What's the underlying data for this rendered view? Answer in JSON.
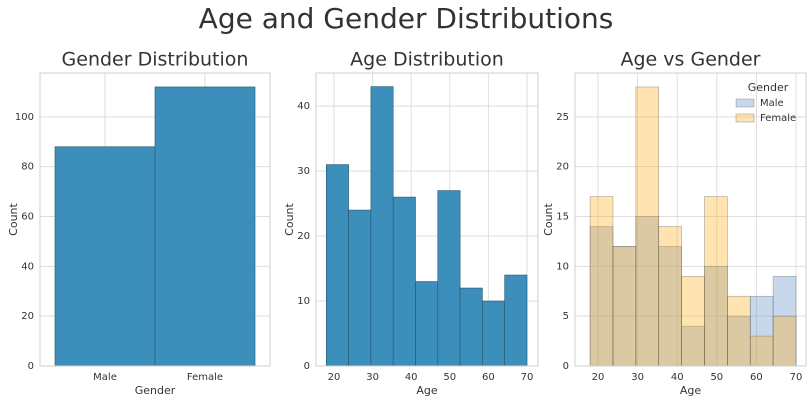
{
  "title": "Age and Gender Distributions",
  "chart_data": [
    {
      "type": "bar",
      "title": "Gender Distribution",
      "xlabel": "Gender",
      "ylabel": "Count",
      "categories": [
        "Male",
        "Female"
      ],
      "values": [
        88,
        112
      ],
      "color": "#3d8fbb",
      "ylim": [
        0,
        117.6
      ],
      "yticks": [
        0,
        20,
        40,
        60,
        80,
        100
      ],
      "grid": true
    },
    {
      "type": "histogram",
      "title": "Age Distribution",
      "xlabel": "Age",
      "ylabel": "Count",
      "bins": [
        18,
        23.78,
        29.56,
        35.33,
        41.11,
        46.89,
        52.67,
        58.44,
        64.22,
        70
      ],
      "values": [
        31,
        24,
        43,
        26,
        13,
        27,
        12,
        10,
        14
      ],
      "color": "#3d8fbb",
      "xlim": [
        15.34,
        72.85
      ],
      "xticks": [
        20,
        30,
        40,
        50,
        60,
        70
      ],
      "ylim": [
        0,
        45.1
      ],
      "yticks": [
        0,
        10,
        20,
        30,
        40
      ],
      "grid": true
    },
    {
      "type": "histogram",
      "title": "Age vs Gender",
      "xlabel": "Age",
      "ylabel": "Count",
      "bins": [
        18,
        23.78,
        29.56,
        35.33,
        41.11,
        46.89,
        52.67,
        58.44,
        64.22,
        70
      ],
      "series": [
        {
          "name": "Male",
          "color": "#5b8fc4",
          "values": [
            14,
            12,
            15,
            12,
            4,
            10,
            5,
            7,
            9
          ]
        },
        {
          "name": "Female",
          "color": "#ffb020",
          "values": [
            17,
            12,
            28,
            14,
            9,
            17,
            7,
            3,
            5
          ]
        }
      ],
      "legend_title": "Gender",
      "legend": "upper right",
      "xlim": [
        14.19,
        72.52
      ],
      "xticks": [
        20,
        30,
        40,
        50,
        60,
        70
      ],
      "ylim": [
        0,
        29.4
      ],
      "yticks": [
        0,
        5,
        10,
        15,
        20,
        25
      ],
      "grid": true
    }
  ]
}
